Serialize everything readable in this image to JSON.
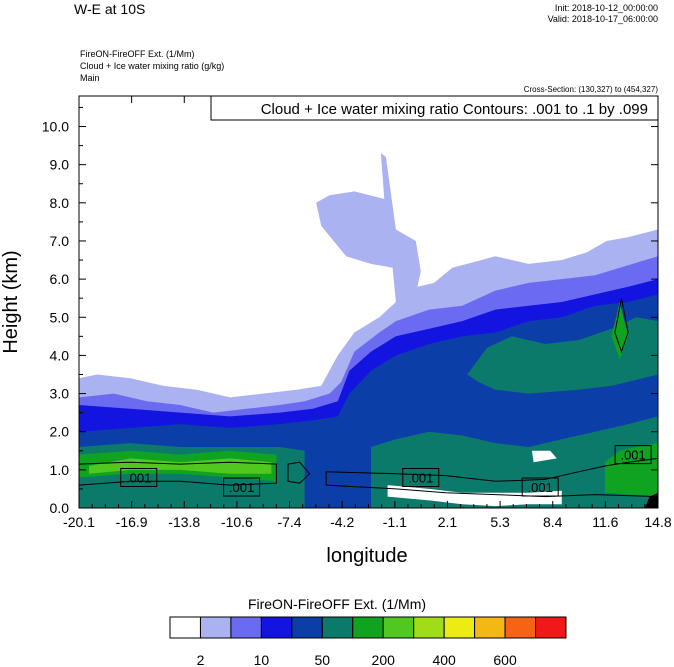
{
  "header": {
    "title": "W-E at 10S",
    "init": "Init: 2018-10-12_00:00:00",
    "valid": "Valid: 2018-10-17_06:00:00",
    "var_line1": "FireON-FireOFF Ext.   (1/Mm)",
    "var_line2": "Cloud + Ice water mixing ratio   (g/kg)",
    "var_line3": "Main",
    "cross_section": "Cross-Section: (130,327) to (454,327)",
    "contour_info": "Cloud + Ice water mixing ratio Contours: .001 to .1 by .099"
  },
  "chart_data": {
    "type": "heatmap",
    "xlabel": "longitude",
    "ylabel": "Height (km)",
    "xlim": [
      -20.1,
      14.8
    ],
    "ylim": [
      0,
      10.8
    ],
    "x_ticks": [
      "-20.1",
      "-16.9",
      "-13.8",
      "-10.6",
      "-7.4",
      "-4.2",
      "-1.1",
      "2.1",
      "5.3",
      "8.4",
      "11.6",
      "14.8"
    ],
    "y_ticks": [
      "0.0",
      "1.0",
      "2.0",
      "3.0",
      "4.0",
      "5.0",
      "6.0",
      "7.0",
      "8.0",
      "9.0",
      "10.0"
    ],
    "y_tick_values": [
      0,
      1,
      2,
      3,
      4,
      5,
      6,
      7,
      8,
      9,
      10
    ],
    "contour_labels": [
      {
        "text": ".001",
        "lon": -16.5,
        "h": 0.8
      },
      {
        "text": ".001",
        "lon": -10.3,
        "h": 0.55
      },
      {
        "text": ".001",
        "lon": 0.5,
        "h": 0.8
      },
      {
        "text": ".001",
        "lon": 7.7,
        "h": 0.55
      },
      {
        "text": ".001",
        "lon": 13.3,
        "h": 1.4
      }
    ],
    "layers": [
      {
        "color": "#aab2f2",
        "points": [
          [
            -20.1,
            3.4
          ],
          [
            -19,
            3.5
          ],
          [
            -17,
            3.4
          ],
          [
            -15,
            3.2
          ],
          [
            -13,
            3.1
          ],
          [
            -11,
            2.9
          ],
          [
            -9,
            3.0
          ],
          [
            -7,
            3.1
          ],
          [
            -5.5,
            3.2
          ],
          [
            -4.5,
            4.0
          ],
          [
            -3.5,
            4.6
          ],
          [
            -2,
            5.0
          ],
          [
            -1,
            5.4
          ],
          [
            -1.2,
            6.3
          ],
          [
            -2.5,
            6.4
          ],
          [
            -4,
            6.6
          ],
          [
            -5.5,
            7.4
          ],
          [
            -5.8,
            8.0
          ],
          [
            -5,
            8.2
          ],
          [
            -3.5,
            8.3
          ],
          [
            -1.7,
            8.1
          ],
          [
            -1.9,
            9.3
          ],
          [
            -1.6,
            9.2
          ],
          [
            -1.0,
            7.3
          ],
          [
            0.2,
            7.0
          ],
          [
            0.5,
            6.2
          ],
          [
            0.3,
            5.8
          ],
          [
            1.3,
            5.9
          ],
          [
            2.4,
            6.3
          ],
          [
            3.3,
            6.4
          ],
          [
            5,
            6.6
          ],
          [
            7,
            6.4
          ],
          [
            9,
            6.5
          ],
          [
            10.5,
            6.7
          ],
          [
            11.7,
            7.0
          ],
          [
            13,
            7.1
          ],
          [
            14.8,
            7.3
          ],
          [
            14.8,
            0
          ],
          [
            -20.1,
            0
          ]
        ]
      },
      {
        "color": "#6b6bf2",
        "points": [
          [
            -20.1,
            2.9
          ],
          [
            -18,
            3.0
          ],
          [
            -16,
            2.8
          ],
          [
            -14,
            2.7
          ],
          [
            -12,
            2.5
          ],
          [
            -10,
            2.6
          ],
          [
            -8,
            2.7
          ],
          [
            -6.5,
            2.8
          ],
          [
            -5,
            3.0
          ],
          [
            -4.3,
            3.3
          ],
          [
            -3.5,
            4.1
          ],
          [
            -2.0,
            4.6
          ],
          [
            -1.0,
            4.9
          ],
          [
            1,
            5.2
          ],
          [
            3,
            5.3
          ],
          [
            5,
            5.7
          ],
          [
            7,
            5.9
          ],
          [
            9,
            6.0
          ],
          [
            11,
            6.1
          ],
          [
            12.5,
            6.3
          ],
          [
            14.8,
            6.6
          ],
          [
            14.8,
            0
          ],
          [
            -20.1,
            0
          ]
        ]
      },
      {
        "color": "#1414e0",
        "points": [
          [
            -20.1,
            2.7
          ],
          [
            -17,
            2.6
          ],
          [
            -14,
            2.5
          ],
          [
            -11,
            2.4
          ],
          [
            -8,
            2.5
          ],
          [
            -6,
            2.6
          ],
          [
            -4.5,
            2.8
          ],
          [
            -3.8,
            3.6
          ],
          [
            -2.5,
            4.1
          ],
          [
            -1,
            4.5
          ],
          [
            1,
            4.7
          ],
          [
            3,
            4.9
          ],
          [
            5,
            5.2
          ],
          [
            7,
            5.3
          ],
          [
            9,
            5.4
          ],
          [
            11,
            5.6
          ],
          [
            13,
            5.8
          ],
          [
            14.8,
            6.0
          ],
          [
            14.8,
            0
          ],
          [
            -20.1,
            0
          ]
        ]
      },
      {
        "color": "#0c3ea8",
        "points": [
          [
            -20.1,
            2.0
          ],
          [
            -17,
            2.1
          ],
          [
            -14,
            2.2
          ],
          [
            -11,
            2.1
          ],
          [
            -8,
            2.2
          ],
          [
            -6,
            2.3
          ],
          [
            -4.5,
            2.4
          ],
          [
            -3.8,
            3.0
          ],
          [
            -2.5,
            3.6
          ],
          [
            -1,
            4.0
          ],
          [
            1,
            4.3
          ],
          [
            3,
            4.5
          ],
          [
            5,
            4.6
          ],
          [
            7,
            4.9
          ],
          [
            9,
            5.0
          ],
          [
            11,
            5.3
          ],
          [
            13,
            5.4
          ],
          [
            14.8,
            5.6
          ],
          [
            14.8,
            0
          ],
          [
            -20.1,
            0
          ]
        ]
      },
      {
        "color": "#0c7a6a",
        "points": [
          [
            3.3,
            3.5
          ],
          [
            4.5,
            4.2
          ],
          [
            6,
            4.5
          ],
          [
            8,
            4.3
          ],
          [
            10,
            4.4
          ],
          [
            12,
            4.7
          ],
          [
            13.5,
            5.0
          ],
          [
            14.8,
            4.9
          ],
          [
            14.8,
            3.5
          ],
          [
            12,
            3.2
          ],
          [
            10,
            3.1
          ],
          [
            7,
            3.0
          ],
          [
            5,
            3.1
          ],
          [
            4,
            3.3
          ]
        ]
      },
      {
        "color": "#0c7a6a",
        "points": [
          [
            -2.5,
            1.6
          ],
          [
            -1,
            1.8
          ],
          [
            1,
            2.0
          ],
          [
            3,
            1.9
          ],
          [
            5,
            1.7
          ],
          [
            7,
            1.6
          ],
          [
            9,
            1.8
          ],
          [
            11,
            2.0
          ],
          [
            13,
            2.2
          ],
          [
            14.8,
            2.4
          ],
          [
            14.8,
            0
          ],
          [
            -2.5,
            0
          ]
        ]
      },
      {
        "color": "#0c7a6a",
        "points": [
          [
            -20.1,
            1.6
          ],
          [
            -17,
            1.7
          ],
          [
            -14,
            1.6
          ],
          [
            -11,
            1.6
          ],
          [
            -8,
            1.6
          ],
          [
            -6.5,
            1.5
          ],
          [
            -6.5,
            0
          ],
          [
            -20.1,
            0
          ]
        ]
      },
      {
        "color": "#10a320",
        "points": [
          [
            -20.1,
            1.4
          ],
          [
            -17,
            1.5
          ],
          [
            -14,
            1.4
          ],
          [
            -11,
            1.5
          ],
          [
            -8.2,
            1.4
          ],
          [
            -8.2,
            0.7
          ],
          [
            -11,
            0.8
          ],
          [
            -14,
            0.9
          ],
          [
            -17,
            0.9
          ],
          [
            -20.1,
            0.8
          ]
        ]
      },
      {
        "color": "#10a320",
        "points": [
          [
            11.6,
            1.2
          ],
          [
            12.5,
            1.5
          ],
          [
            13.5,
            1.6
          ],
          [
            14.8,
            1.7
          ],
          [
            14.8,
            0.3
          ],
          [
            11.6,
            0.4
          ]
        ]
      },
      {
        "color": "#10a320",
        "points": [
          [
            12.0,
            4.5
          ],
          [
            12.5,
            5.4
          ],
          [
            13.0,
            4.5
          ],
          [
            12.5,
            3.9
          ]
        ]
      },
      {
        "color": "#50c820",
        "points": [
          [
            -19.5,
            1.1
          ],
          [
            -17,
            1.3
          ],
          [
            -14,
            1.2
          ],
          [
            -11,
            1.3
          ],
          [
            -8.5,
            1.2
          ],
          [
            -8.5,
            0.9
          ],
          [
            -11,
            0.9
          ],
          [
            -14,
            1.0
          ],
          [
            -17,
            1.0
          ],
          [
            -19.5,
            0.9
          ]
        ]
      },
      {
        "color": "#ffffff",
        "points": [
          [
            -1.5,
            0.6
          ],
          [
            1,
            0.5
          ],
          [
            3,
            0.4
          ],
          [
            5,
            0.4
          ],
          [
            7,
            0.4
          ],
          [
            9,
            0.45
          ],
          [
            9,
            0.1
          ],
          [
            7,
            0.1
          ],
          [
            5,
            0.05
          ],
          [
            3,
            0.1
          ],
          [
            1,
            0.2
          ],
          [
            -1.5,
            0.3
          ]
        ]
      },
      {
        "color": "#ffffff",
        "points": [
          [
            7.2,
            1.5
          ],
          [
            8.3,
            1.5
          ],
          [
            8.7,
            1.3
          ],
          [
            7.3,
            1.2
          ]
        ]
      },
      {
        "color": "#000000",
        "points": [
          [
            14.3,
            0.3
          ],
          [
            14.8,
            0.4
          ],
          [
            14.8,
            0
          ],
          [
            14.0,
            0
          ]
        ]
      }
    ],
    "contours": [
      [
        [
          -20.1,
          1.15
        ],
        [
          -17,
          1.2
        ],
        [
          -14,
          1.15
        ],
        [
          -11,
          1.2
        ],
        [
          -8.2,
          1.15
        ],
        [
          -8.2,
          0.65
        ],
        [
          -11,
          0.6
        ],
        [
          -14,
          0.7
        ],
        [
          -17,
          0.7
        ],
        [
          -20.1,
          0.6
        ]
      ],
      [
        [
          -7.5,
          1.15
        ],
        [
          -6.8,
          1.2
        ],
        [
          -6.2,
          0.9
        ],
        [
          -6.8,
          0.65
        ],
        [
          -7.5,
          0.7
        ]
      ],
      [
        [
          -5.2,
          0.95
        ],
        [
          -1,
          0.9
        ],
        [
          2,
          0.85
        ],
        [
          5,
          0.7
        ],
        [
          8,
          0.75
        ],
        [
          10,
          0.95
        ],
        [
          11.6,
          1.1
        ],
        [
          13,
          1.2
        ],
        [
          14.8,
          1.3
        ],
        [
          14.8,
          0.3
        ],
        [
          11,
          0.35
        ],
        [
          8,
          0.3
        ],
        [
          5,
          0.35
        ],
        [
          2,
          0.4
        ],
        [
          -1,
          0.5
        ],
        [
          -5.2,
          0.6
        ]
      ],
      [
        [
          12.2,
          4.6
        ],
        [
          12.6,
          5.5
        ],
        [
          13.0,
          4.6
        ],
        [
          12.6,
          4.1
        ]
      ]
    ],
    "colorbar": {
      "title": "FireON-FireOFF Ext.  (1/Mm)",
      "colors": [
        "#ffffff",
        "#aab2f2",
        "#6b6bf2",
        "#1414e0",
        "#0c3ea8",
        "#0c7a6a",
        "#10a320",
        "#50c820",
        "#a0dc18",
        "#ecec14",
        "#f4b814",
        "#f46414",
        "#f01818"
      ],
      "labels": [
        {
          "text": "2",
          "boundary": 1
        },
        {
          "text": "10",
          "boundary": 3
        },
        {
          "text": "50",
          "boundary": 5
        },
        {
          "text": "200",
          "boundary": 7
        },
        {
          "text": "400",
          "boundary": 9
        },
        {
          "text": "600",
          "boundary": 11
        }
      ]
    }
  }
}
